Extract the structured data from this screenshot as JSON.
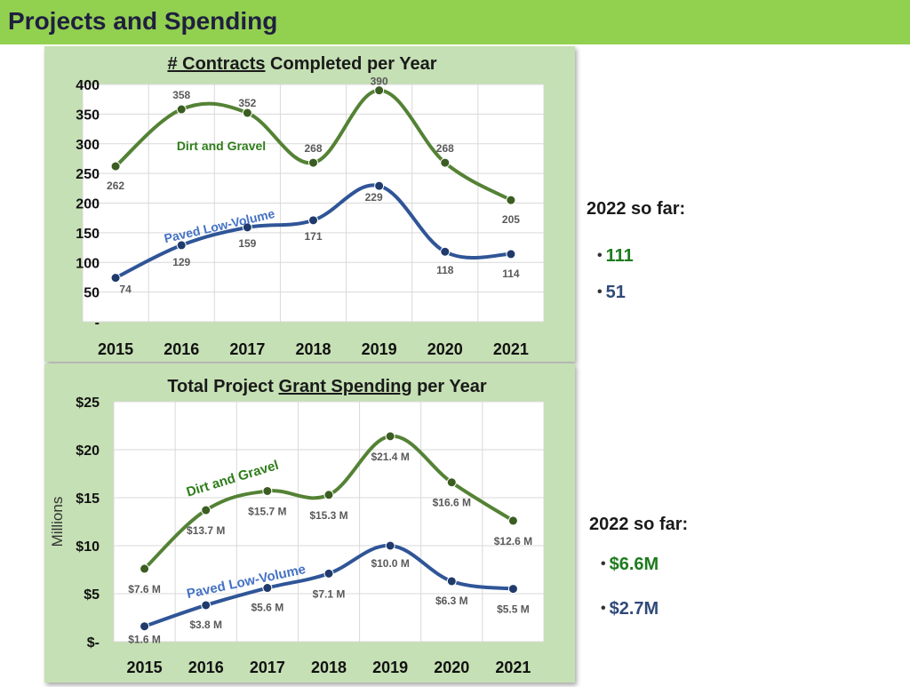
{
  "page": {
    "title": "Projects and Spending"
  },
  "colors": {
    "banner": "#92d050",
    "panel": "#c5e0b4",
    "dirt_gravel": "#548235",
    "paved": "#2f5597",
    "bullet_green": "#1e7b1e",
    "bullet_blue": "#2f4a7a"
  },
  "chart_data": [
    {
      "type": "line",
      "title_prefix": "# Contracts",
      "title_suffix": " Completed per Year",
      "categories": [
        "2015",
        "2016",
        "2017",
        "2018",
        "2019",
        "2020",
        "2021"
      ],
      "ylim": [
        0,
        400
      ],
      "yticks": [
        0,
        50,
        100,
        150,
        200,
        250,
        300,
        350,
        400
      ],
      "ytick_labels": [
        "-",
        "50",
        "100",
        "150",
        "200",
        "250",
        "300",
        "350",
        "400"
      ],
      "ylabel": "",
      "grid": true,
      "series": [
        {
          "name": "Dirt and Gravel",
          "values": [
            262,
            358,
            352,
            268,
            390,
            268,
            205
          ],
          "labels": [
            "262",
            "358",
            "352",
            "268",
            "390",
            "268",
            "205"
          ]
        },
        {
          "name": "Paved Low-Volume",
          "values": [
            74,
            129,
            159,
            171,
            229,
            118,
            114
          ],
          "labels": [
            "74",
            "129",
            "159",
            "171",
            "229",
            "118",
            "114"
          ]
        }
      ]
    },
    {
      "type": "line",
      "title_prefix": "Total Project ",
      "title_underlined": "Grant Spending",
      "title_suffix": " per Year",
      "categories": [
        "2015",
        "2016",
        "2017",
        "2018",
        "2019",
        "2020",
        "2021"
      ],
      "ylim": [
        0,
        25
      ],
      "yticks": [
        0,
        5,
        10,
        15,
        20,
        25
      ],
      "ytick_labels": [
        "$-",
        "$5",
        "$10",
        "$15",
        "$20",
        "$25"
      ],
      "ylabel": "Millions",
      "grid": true,
      "series": [
        {
          "name": "Dirt and Gravel",
          "values": [
            7.6,
            13.7,
            15.7,
            15.3,
            21.4,
            16.6,
            12.6
          ],
          "labels": [
            "$7.6 M",
            "$13.7 M",
            "$15.7 M",
            "$15.3 M",
            "$21.4 M",
            "$16.6 M",
            "$12.6 M"
          ]
        },
        {
          "name": "Paved Low-Volume",
          "values": [
            1.6,
            3.8,
            5.6,
            7.1,
            10.0,
            6.3,
            5.5
          ],
          "labels": [
            "$1.6 M",
            "$3.8 M",
            "$5.6 M",
            "$7.1 M",
            "$10.0 M",
            "$6.3 M",
            "$5.5 M"
          ]
        }
      ]
    }
  ],
  "side": {
    "contracts": {
      "heading": "2022 so far:",
      "dirt_gravel": "111",
      "paved": "51"
    },
    "spending": {
      "heading": "2022 so far:",
      "dirt_gravel": "$6.6M",
      "paved": "$2.7M"
    }
  }
}
